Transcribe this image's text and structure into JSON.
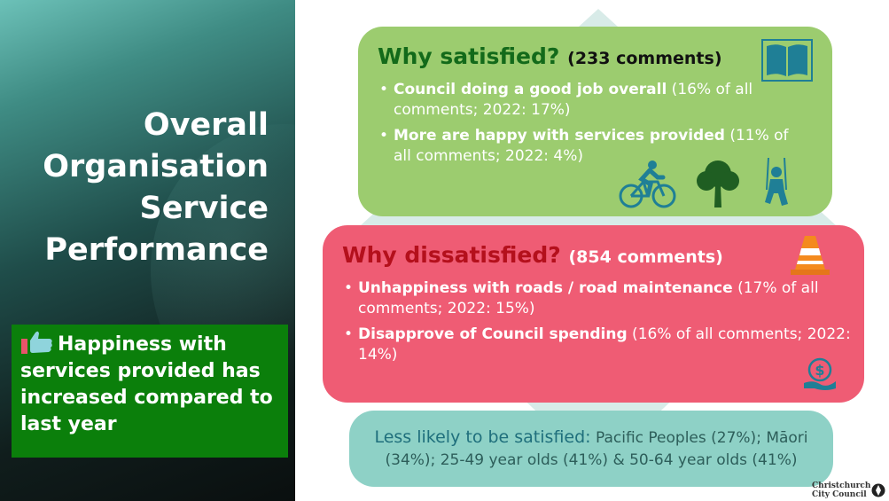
{
  "left_panel": {
    "title_lines": [
      "Overall",
      "Organisation",
      "Service",
      "Performance"
    ],
    "highlight": {
      "icon": "thumbs-up-icon",
      "text": "Happiness with services provided has increased compared to last year"
    }
  },
  "satisfied": {
    "heading": "Why satisfied?",
    "count": "(233 comments)",
    "points": [
      {
        "bold": "Council doing a good job overall",
        "detail": " (16% of all comments; 2022: 17%)"
      },
      {
        "bold": "More are happy with services provided",
        "detail": " (11% of all comments; 2022: 4%)"
      }
    ],
    "icons": [
      "book-icon",
      "cyclist-icon",
      "tree-icon",
      "child-on-swing-icon"
    ]
  },
  "dissatisfied": {
    "heading": "Why dissatisfied?",
    "count": "(854 comments)",
    "points": [
      {
        "bold": "Unhappiness with roads / road maintenance",
        "detail": " (17% of all comments; 2022: 15%)"
      },
      {
        "bold": "Disapprove of Council spending",
        "detail": " (16% of all comments; 2022: 14%)"
      }
    ],
    "icons": [
      "traffic-cone-icon",
      "money-hand-icon"
    ]
  },
  "groups": {
    "label": "Less likely to be satisfied:",
    "text": " Pacific Peoples (27%); Māori (34%); 25-49 year olds (41%) & 50-64 year olds (41%)"
  },
  "logo": {
    "line1": "Christchurch",
    "line2": "City Council",
    "icon": "council-logo-icon"
  },
  "colors": {
    "satisfied_card": "#9ccc6f",
    "dissatisfied_card": "#ef5c74",
    "groups_card": "#8ed1c6",
    "highlight_box": "#0b7f0b",
    "satisfied_heading": "#136a1a",
    "dissatisfied_heading": "#b4101c"
  }
}
